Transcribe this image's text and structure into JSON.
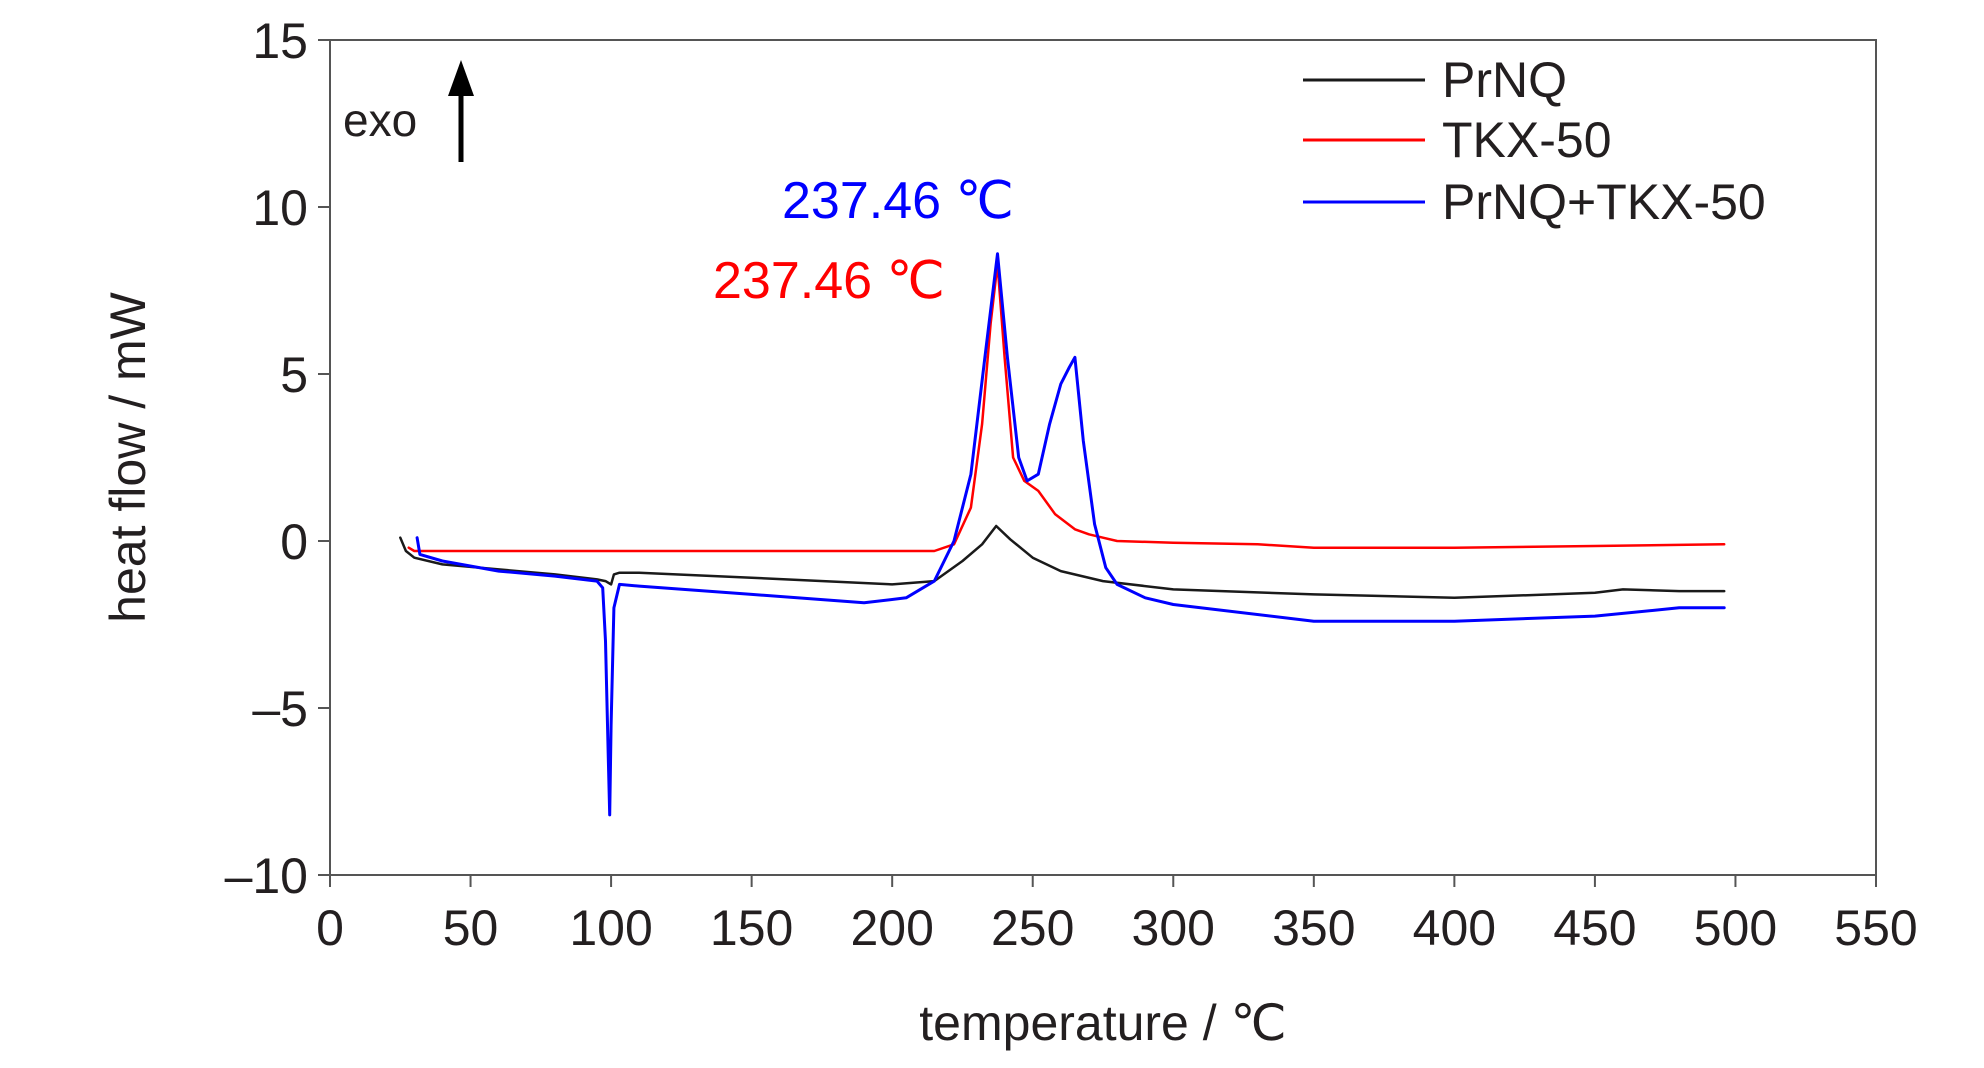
{
  "chart_data": {
    "type": "line",
    "title": "",
    "xlabel": "temperature / ℃",
    "ylabel": "heat flow / mW",
    "xlim": [
      0,
      550
    ],
    "ylim": [
      -10,
      15
    ],
    "x_ticks": [
      0,
      50,
      100,
      150,
      200,
      250,
      300,
      350,
      400,
      450,
      500,
      550
    ],
    "y_ticks": [
      15,
      10,
      5,
      0,
      -5,
      -10
    ],
    "y_tick_labels": [
      "15",
      "10",
      "5",
      "0",
      "–5",
      "–10"
    ],
    "grid": false,
    "legend_position": "top-right",
    "exo_label": "exo",
    "annotations": [
      {
        "text": "237.46 ℃",
        "color": "#0000ff",
        "series": "PrNQ+TKX-50"
      },
      {
        "text": "237.46 ℃",
        "color": "#ff0000",
        "series": "TKX-50"
      }
    ],
    "series": [
      {
        "name": "PrNQ",
        "color": "#1a1a1a",
        "points": [
          [
            25,
            0.1
          ],
          [
            27,
            -0.3
          ],
          [
            30,
            -0.5
          ],
          [
            40,
            -0.7
          ],
          [
            60,
            -0.85
          ],
          [
            80,
            -1.0
          ],
          [
            95,
            -1.15
          ],
          [
            98,
            -1.2
          ],
          [
            100,
            -1.3
          ],
          [
            101,
            -1.0
          ],
          [
            103,
            -0.95
          ],
          [
            110,
            -0.95
          ],
          [
            150,
            -1.1
          ],
          [
            200,
            -1.3
          ],
          [
            215,
            -1.2
          ],
          [
            225,
            -0.6
          ],
          [
            232,
            -0.1
          ],
          [
            237,
            0.45
          ],
          [
            242,
            0.05
          ],
          [
            250,
            -0.5
          ],
          [
            260,
            -0.9
          ],
          [
            275,
            -1.2
          ],
          [
            300,
            -1.45
          ],
          [
            350,
            -1.6
          ],
          [
            400,
            -1.7
          ],
          [
            450,
            -1.55
          ],
          [
            460,
            -1.45
          ],
          [
            480,
            -1.5
          ],
          [
            496,
            -1.5
          ]
        ]
      },
      {
        "name": "TKX-50",
        "color": "#ff0000",
        "points": [
          [
            28,
            -0.2
          ],
          [
            30,
            -0.3
          ],
          [
            40,
            -0.3
          ],
          [
            100,
            -0.3
          ],
          [
            150,
            -0.3
          ],
          [
            200,
            -0.3
          ],
          [
            215,
            -0.3
          ],
          [
            222,
            -0.1
          ],
          [
            228,
            1.0
          ],
          [
            232,
            3.5
          ],
          [
            235,
            6.5
          ],
          [
            237.46,
            8.3
          ],
          [
            240,
            5.5
          ],
          [
            243,
            2.5
          ],
          [
            247,
            1.8
          ],
          [
            252,
            1.5
          ],
          [
            258,
            0.8
          ],
          [
            265,
            0.35
          ],
          [
            270,
            0.2
          ],
          [
            275,
            0.1
          ],
          [
            280,
            0.0
          ],
          [
            300,
            -0.05
          ],
          [
            330,
            -0.1
          ],
          [
            350,
            -0.2
          ],
          [
            400,
            -0.2
          ],
          [
            450,
            -0.15
          ],
          [
            496,
            -0.1
          ]
        ]
      },
      {
        "name": "PrNQ+TKX-50",
        "color": "#0000ff",
        "points": [
          [
            31,
            0.1
          ],
          [
            32,
            -0.4
          ],
          [
            40,
            -0.6
          ],
          [
            60,
            -0.9
          ],
          [
            80,
            -1.05
          ],
          [
            95,
            -1.2
          ],
          [
            97,
            -1.4
          ],
          [
            98,
            -3.0
          ],
          [
            99,
            -6.5
          ],
          [
            99.5,
            -8.2
          ],
          [
            100,
            -5.5
          ],
          [
            101,
            -2.0
          ],
          [
            103,
            -1.3
          ],
          [
            110,
            -1.35
          ],
          [
            150,
            -1.6
          ],
          [
            190,
            -1.85
          ],
          [
            205,
            -1.7
          ],
          [
            215,
            -1.2
          ],
          [
            222,
            0.0
          ],
          [
            228,
            2.0
          ],
          [
            233,
            5.5
          ],
          [
            237.46,
            8.6
          ],
          [
            241,
            5.5
          ],
          [
            245,
            2.5
          ],
          [
            248,
            1.8
          ],
          [
            252,
            2.0
          ],
          [
            256,
            3.5
          ],
          [
            260,
            4.7
          ],
          [
            263,
            5.2
          ],
          [
            265,
            5.5
          ],
          [
            268,
            3.0
          ],
          [
            272,
            0.5
          ],
          [
            276,
            -0.8
          ],
          [
            280,
            -1.3
          ],
          [
            290,
            -1.7
          ],
          [
            300,
            -1.9
          ],
          [
            350,
            -2.4
          ],
          [
            400,
            -2.4
          ],
          [
            450,
            -2.25
          ],
          [
            480,
            -2.0
          ],
          [
            496,
            -2.0
          ]
        ]
      }
    ]
  }
}
